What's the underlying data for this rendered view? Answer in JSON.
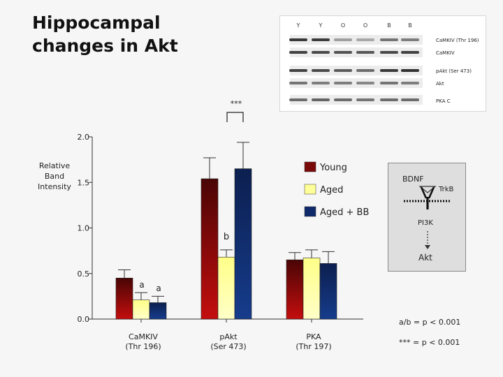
{
  "slide": {
    "title": "Hippocampal changes in Akt"
  },
  "blot": {
    "lane_labels": [
      "Y",
      "Y",
      "O",
      "O",
      "B",
      "B"
    ],
    "band_labels": [
      "CaMKIV (Thr 196)",
      "CaMKIV",
      "pAkt (Ser 473)",
      "Akt",
      "PKA C"
    ]
  },
  "chart_data": {
    "type": "bar",
    "ylabel": "Relative Band Intensity",
    "ylim": [
      0,
      2.0
    ],
    "yticks": [
      "0.0",
      "0.5",
      "1.0",
      "1.5",
      "2.0"
    ],
    "categories": [
      "CaMKIV (Thr 196)",
      "pAkt (Ser 473)",
      "PKA (Thr 197)"
    ],
    "category_labels": [
      [
        "CaMKIV",
        "(Thr 196)"
      ],
      [
        "pAkt",
        "(Ser 473)"
      ],
      [
        "PKA",
        "(Thr 197)"
      ]
    ],
    "series": [
      {
        "name": "Young",
        "values": [
          0.45,
          1.54,
          0.65
        ],
        "errors": [
          0.09,
          0.23,
          0.08
        ],
        "color": "#7a0a0a"
      },
      {
        "name": "Aged",
        "values": [
          0.21,
          0.68,
          0.67
        ],
        "errors": [
          0.08,
          0.08,
          0.09
        ],
        "color": "#ffff99"
      },
      {
        "name": "Aged + BB",
        "values": [
          0.18,
          1.65,
          0.61
        ],
        "errors": [
          0.07,
          0.29,
          0.13
        ],
        "color": "#0f2a6b"
      }
    ],
    "annotations": {
      "a1": "a",
      "a2": "a",
      "b": "b",
      "sig": "***",
      "footnote_ab": "a/b = p < 0.001",
      "footnote_sig": "*** = p < 0.001"
    }
  },
  "pathway": {
    "bdnf": "BDNF",
    "trkb": "TrkB",
    "pi3k": "PI3K",
    "akt": "Akt"
  },
  "colors": {
    "background": "#f6f6f6",
    "pathway_box": "#dedede"
  }
}
